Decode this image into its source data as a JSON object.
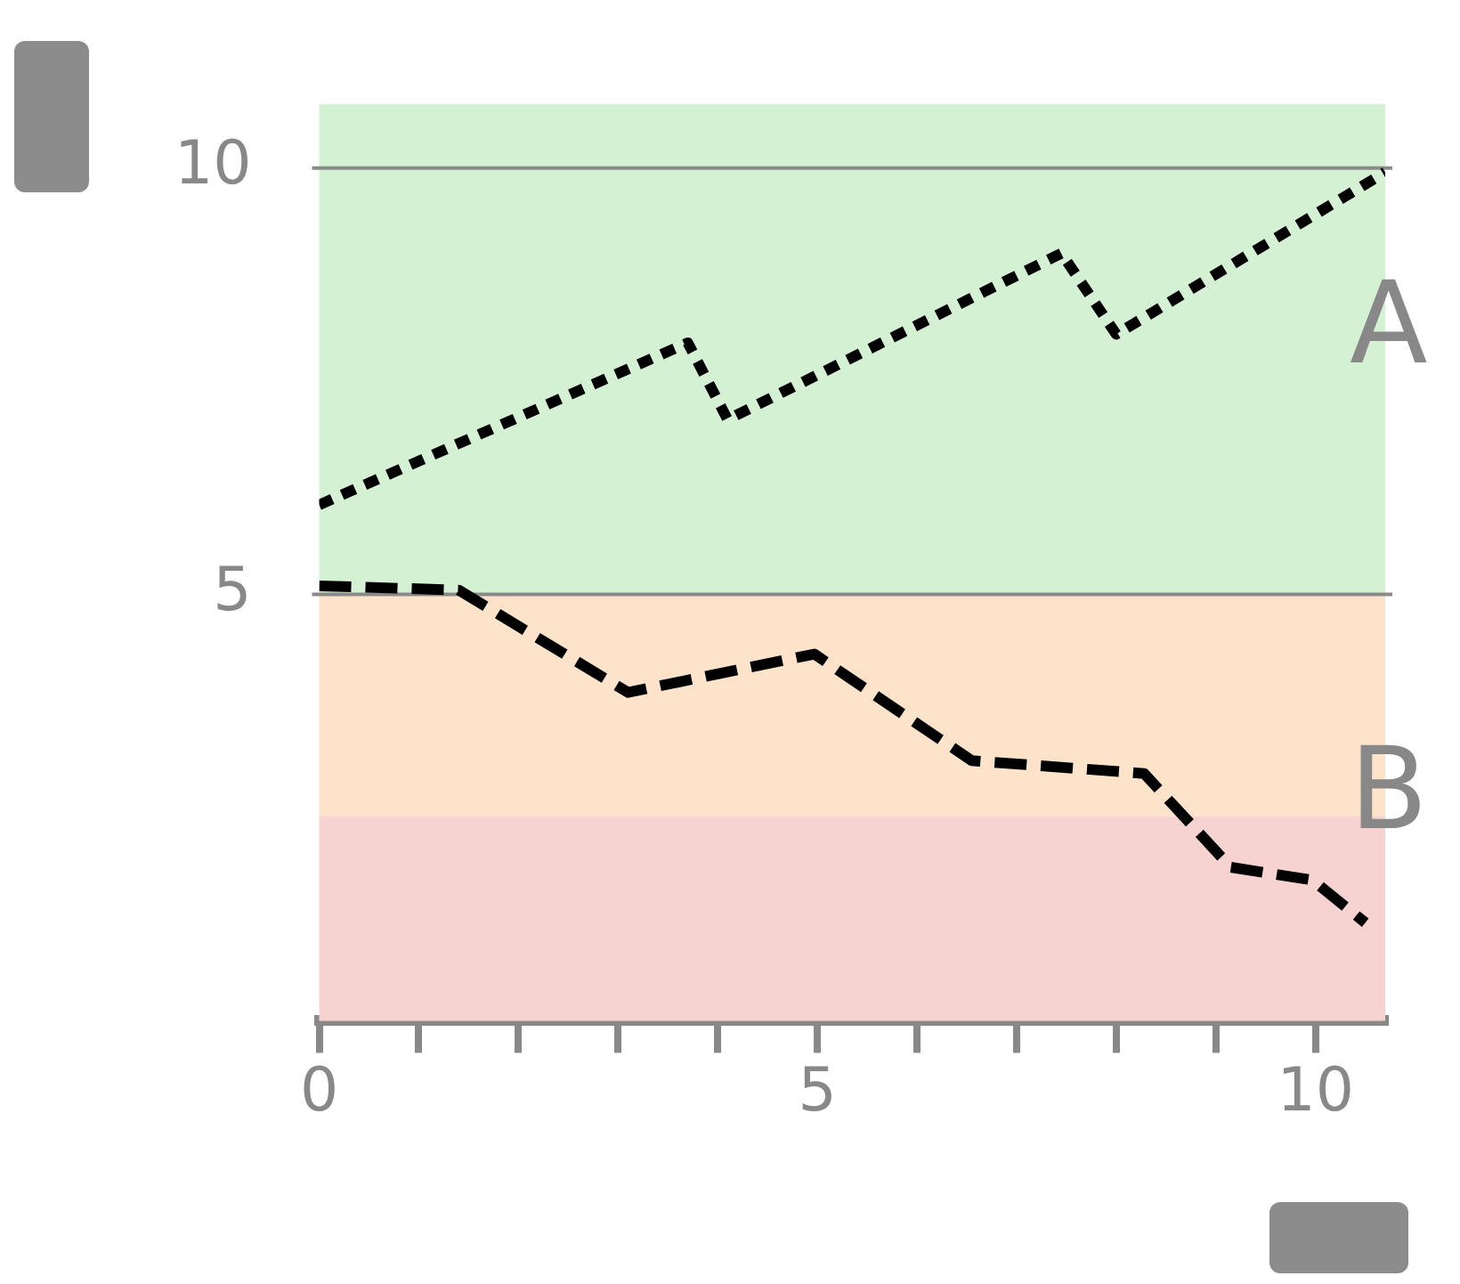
{
  "chart_data": {
    "type": "line",
    "xlim": [
      0,
      10.7
    ],
    "ylim": [
      0,
      10.75
    ],
    "xticks": [
      0,
      {
        "value": 1,
        "label": null
      },
      {
        "value": 2,
        "label": null
      },
      {
        "value": 3,
        "label": null
      },
      {
        "value": 4,
        "label": null
      },
      5,
      {
        "value": 6,
        "label": null
      },
      {
        "value": 7,
        "label": null
      },
      {
        "value": 8,
        "label": null
      },
      {
        "value": 9,
        "label": null
      },
      10
    ],
    "yticks": [
      5,
      10
    ],
    "grid": "y",
    "legend": false,
    "bands": [
      {
        "axis": "y",
        "from": 5,
        "to": 10.75,
        "color": "#d4f1d4"
      },
      {
        "axis": "y",
        "from": 2.4,
        "to": 5,
        "color": "#fde3c9"
      },
      {
        "axis": "y",
        "from": 0,
        "to": 2.4,
        "color": "#f6d3d1"
      }
    ],
    "series": [
      {
        "name": "A",
        "color": "#000000",
        "line_style": "dotted",
        "x": [
          0,
          3.7,
          4.1,
          7.45,
          8.0,
          10.7
        ],
        "values": [
          6.05,
          7.95,
          7.05,
          9.0,
          8.05,
          9.95
        ]
      },
      {
        "name": "B",
        "color": "#000000",
        "line_style": "dashed",
        "x": [
          0,
          1.4,
          3.1,
          4.97,
          6.55,
          8.28,
          9.15,
          9.97,
          10.5
        ],
        "values": [
          5.1,
          5.05,
          3.85,
          4.3,
          3.05,
          2.9,
          1.8,
          1.65,
          1.15
        ]
      }
    ]
  }
}
